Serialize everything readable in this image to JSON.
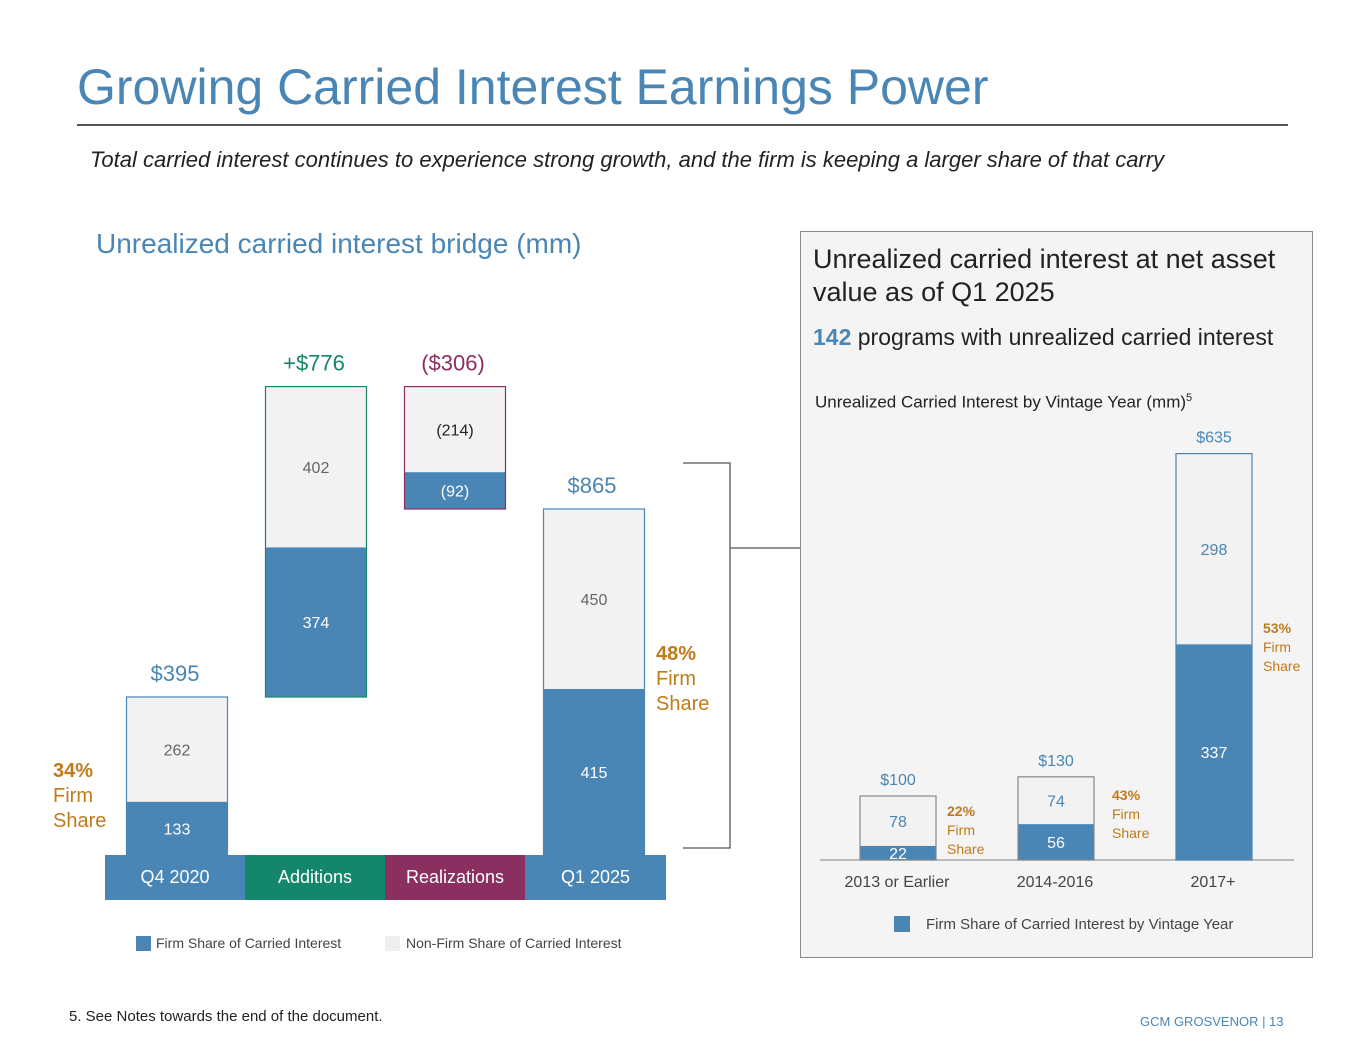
{
  "page": {
    "title": "Growing Carried Interest Earnings Power",
    "subtitle": "Total carried interest continues to experience strong growth, and the firm is keeping a larger share of that carry",
    "footnote": "5. See Notes towards the end of the document.",
    "footer": "GCM GROSVENOR | 13"
  },
  "colors": {
    "firm": "#4a86b5",
    "nonfirm": "#f2f2f2",
    "additions": "#14866b",
    "realizations": "#8b2f61",
    "pct": "#c17a1a"
  },
  "chart_data": [
    {
      "type": "bar",
      "subtype": "waterfall-stacked",
      "title": "Unrealized carried interest bridge (mm)",
      "categories": [
        "Q4 2020",
        "Additions",
        "Realizations",
        "Q1 2025"
      ],
      "series": [
        {
          "name": "Firm Share of Carried Interest",
          "values": [
            133,
            374,
            -92,
            415
          ],
          "labels": [
            "133",
            "374",
            "(92)",
            "415"
          ]
        },
        {
          "name": "Non-Firm Share of Carried Interest",
          "values": [
            262,
            402,
            -214,
            450
          ],
          "labels": [
            "262",
            "402",
            "(214)",
            "450"
          ]
        }
      ],
      "totals": [
        "$395",
        "+$776",
        "($306)",
        "$865"
      ],
      "firm_share_labels": [
        {
          "pct": "34%",
          "l1": "Firm",
          "l2": "Share"
        },
        {
          "pct": "48%",
          "l1": "Firm",
          "l2": "Share"
        }
      ],
      "legend": [
        "Firm Share of Carried Interest",
        "Non-Firm Share of Carried Interest"
      ]
    },
    {
      "type": "bar",
      "subtype": "stacked",
      "title": "Unrealized Carried Interest by Vintage Year (mm)",
      "title_superscript": "5",
      "categories": [
        "2013 or Earlier",
        "2014-2016",
        "2017+"
      ],
      "series": [
        {
          "name": "Firm Share of Carried Interest by Vintage Year",
          "values": [
            22,
            56,
            337
          ]
        },
        {
          "name": "Non-Firm Share",
          "values": [
            78,
            74,
            298
          ]
        }
      ],
      "totals": [
        "$100",
        "$130",
        "$635"
      ],
      "firm_share": [
        {
          "pct": "22%",
          "l1": "Firm",
          "l2": "Share"
        },
        {
          "pct": "43%",
          "l1": "Firm",
          "l2": "Share"
        },
        {
          "pct": "53%",
          "l1": "Firm",
          "l2": "Share"
        }
      ],
      "legend": [
        "Firm Share of Carried Interest by Vintage Year"
      ]
    }
  ],
  "panel": {
    "heading": "Unrealized carried interest at net asset value as of Q1 2025",
    "programs_count": "142",
    "programs_text": " programs with unrealized carried interest"
  }
}
